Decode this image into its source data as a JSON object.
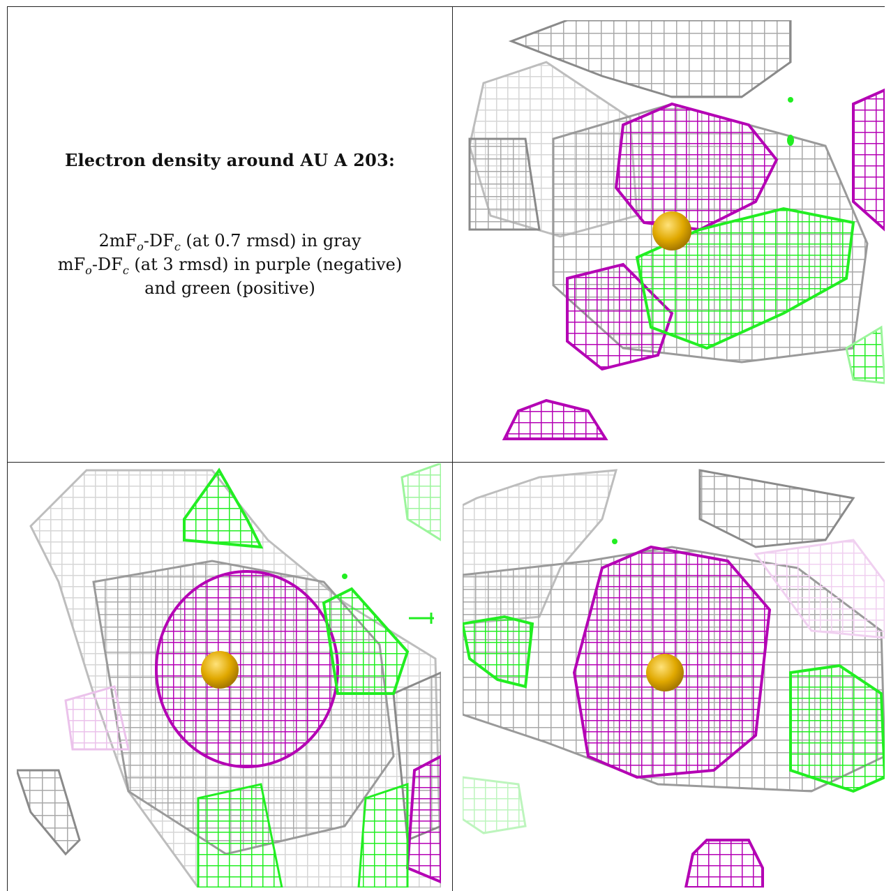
{
  "legend": {
    "title": "Electron density around AU A 203:",
    "line1": {
      "a": "2mF",
      "a_sub": "o",
      "b": "-DF",
      "b_sub": "c",
      "rest": " (at 0.7 rmsd) in gray"
    },
    "line2": {
      "a": "mF",
      "a_sub": "o",
      "b": "-DF",
      "b_sub": "c",
      "rest": " (at 3 rmsd) in purple (negative)"
    },
    "line3": "and green (positive)"
  },
  "colors": {
    "gray_mesh": "#9a9a9a",
    "gray_mesh_light": "#cfcfcf",
    "negative_purple": "#b400b4",
    "positive_green": "#22ee22",
    "atom_gold": "#e0a800"
  },
  "panels": [
    {
      "name": "view-top-right",
      "atom": "AU"
    },
    {
      "name": "view-bottom-left",
      "atom": "AU"
    },
    {
      "name": "view-bottom-right",
      "atom": "AU"
    }
  ]
}
